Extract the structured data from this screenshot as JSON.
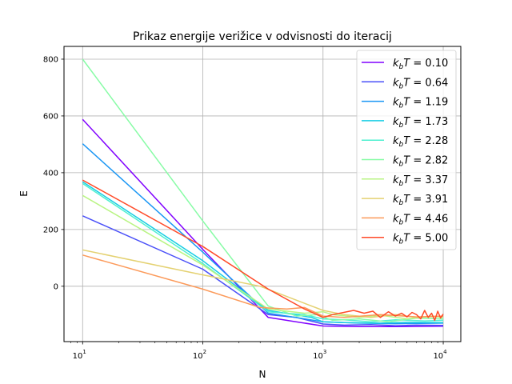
{
  "chart_data": {
    "type": "line",
    "title": "Prikaz energije verižice v odvisnosti do iteracij",
    "xlabel": "N",
    "ylabel": "E",
    "xscale": "log",
    "xlim": [
      7,
      14000
    ],
    "ylim": [
      -195,
      845
    ],
    "x_ticks": [
      {
        "value": 10,
        "base": "10",
        "exp": "1"
      },
      {
        "value": 100,
        "base": "10",
        "exp": "2"
      },
      {
        "value": 1000,
        "base": "10",
        "exp": "3"
      },
      {
        "value": 10000,
        "base": "10",
        "exp": "4"
      }
    ],
    "y_ticks": [
      0,
      200,
      400,
      600,
      800
    ],
    "grid": true,
    "legend_position": "top-right",
    "legend_prefix": "k",
    "legend_sub": "b",
    "legend_mid": "T = ",
    "series": [
      {
        "name": "0.10",
        "color": "#8000ff",
        "x": [
          10,
          100,
          350,
          1000,
          2000,
          4000,
          10000
        ],
        "y": [
          588,
          130,
          -110,
          -140,
          -142,
          -142,
          -141
        ]
      },
      {
        "name": "0.64",
        "color": "#4a50f8",
        "x": [
          10,
          100,
          350,
          600,
          1000,
          1500,
          2500,
          4000,
          6000,
          10000
        ],
        "y": [
          248,
          60,
          -100,
          -110,
          -133,
          -137,
          -135,
          -139,
          -137,
          -138
        ]
      },
      {
        "name": "1.19",
        "color": "#1a96f4",
        "x": [
          10,
          100,
          350,
          1000,
          2000,
          4000,
          10000
        ],
        "y": [
          502,
          120,
          -95,
          -125,
          -130,
          -132,
          -130
        ]
      },
      {
        "name": "1.73",
        "color": "#18cde4",
        "x": [
          10,
          100,
          350,
          800,
          1000,
          1500,
          3000,
          5000,
          10000
        ],
        "y": [
          368,
          90,
          -85,
          -110,
          -125,
          -128,
          -130,
          -127,
          -128
        ]
      },
      {
        "name": "2.28",
        "color": "#4ff0d0",
        "x": [
          10,
          100,
          350,
          700,
          1000,
          1500,
          2500,
          4000,
          7000,
          10000
        ],
        "y": [
          362,
          80,
          -90,
          -100,
          -115,
          -118,
          -125,
          -118,
          -122,
          -120
        ]
      },
      {
        "name": "2.82",
        "color": "#88fca6",
        "x": [
          10,
          100,
          350,
          600,
          900,
          1200,
          2000,
          3500,
          6000,
          10000
        ],
        "y": [
          800,
          230,
          -70,
          -105,
          -100,
          -120,
          -115,
          -125,
          -112,
          -115
        ]
      },
      {
        "name": "3.37",
        "color": "#b9f483",
        "x": [
          10,
          100,
          350,
          700,
          1000,
          1200,
          2000,
          3000,
          5000,
          8000,
          10000
        ],
        "y": [
          320,
          75,
          -80,
          -95,
          -90,
          -100,
          -110,
          -102,
          -115,
          -105,
          -110
        ]
      },
      {
        "name": "3.91",
        "color": "#e4d171",
        "x": [
          10,
          100,
          300,
          700,
          1000,
          1500,
          2500,
          4000,
          6000,
          10000
        ],
        "y": [
          128,
          40,
          0,
          -60,
          -85,
          -100,
          -110,
          -100,
          -110,
          -105
        ]
      },
      {
        "name": "4.46",
        "color": "#fc9a5a",
        "x": [
          10,
          100,
          300,
          500,
          700,
          1000,
          1500,
          3000,
          6000,
          10000
        ],
        "y": [
          110,
          -10,
          -75,
          -80,
          -75,
          -105,
          -110,
          -100,
          -108,
          -105
        ]
      },
      {
        "name": "5.00",
        "color": "#ff4a28",
        "x": [
          10,
          100,
          350,
          700,
          1000,
          1200,
          1800,
          2200,
          2600,
          3000,
          3500,
          4000,
          4500,
          5000,
          5500,
          6000,
          6500,
          7000,
          7500,
          8000,
          8500,
          9000,
          9500,
          10000
        ],
        "y": [
          374,
          140,
          -10,
          -80,
          -110,
          -100,
          -85,
          -95,
          -88,
          -110,
          -90,
          -105,
          -95,
          -108,
          -92,
          -100,
          -115,
          -85,
          -110,
          -95,
          -120,
          -88,
          -112,
          -98
        ]
      }
    ]
  }
}
